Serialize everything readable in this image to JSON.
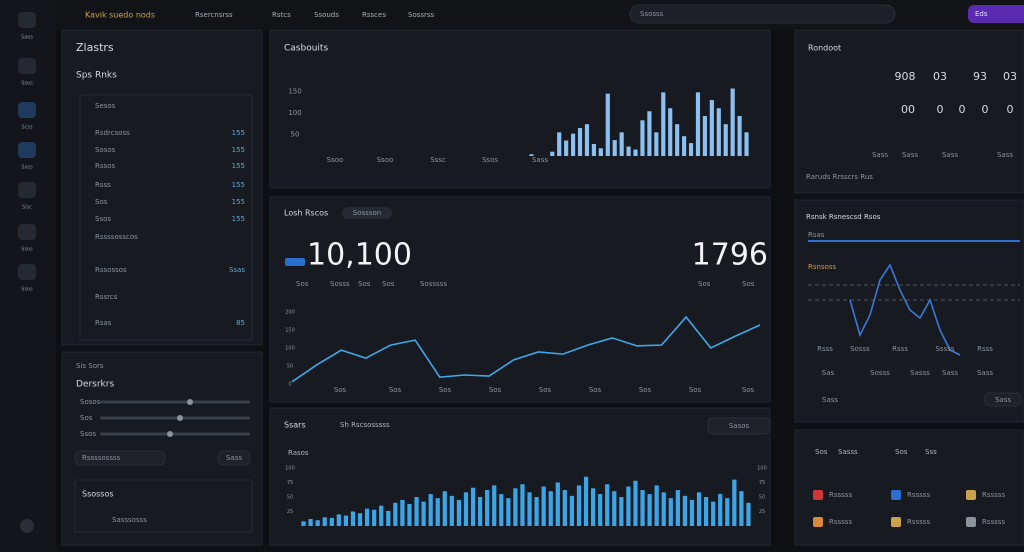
{
  "topbar": {
    "brand": "Kavik suedo nods",
    "menu": [
      "Rsercnsrss",
      "Rstcs",
      "Ssouds",
      "Rssces",
      "Sossrss"
    ],
    "search": "Ssosss",
    "button": "Eds"
  },
  "sidebar": [
    "Saos",
    "Ssos",
    "Scss",
    "Sass",
    "Sisc",
    "Ssos",
    "Ssos"
  ],
  "list_panel": {
    "title": "Zlastrs",
    "subtitle": "Sps Rnks",
    "header": "Sesos",
    "rows": [
      {
        "label": "Rsdrcsoss",
        "value": "155"
      },
      {
        "label": "Sosos",
        "value": "155"
      },
      {
        "label": "Rssos",
        "value": "155"
      },
      {
        "label": "Rsss",
        "value": "155"
      },
      {
        "label": "Sos",
        "value": "155"
      },
      {
        "label": "Ssos",
        "value": "155"
      },
      {
        "label": "Rssssosscos"
      },
      {
        "label": "Rssossos",
        "value": "Ssas"
      },
      {
        "label": "Rssrcs"
      },
      {
        "label": "Rsas",
        "value": "85"
      }
    ]
  },
  "sliders_panel": {
    "kicker": "Sis Sors",
    "title": "Dersrkrs",
    "sliders": [
      "Sosos",
      "Sos",
      "Ssos"
    ],
    "select": "Rssssossss",
    "button": "Sass",
    "footer": "Ssossos",
    "footer_row": "Sasssosss"
  },
  "bar_chart": {
    "title": "Casbouits",
    "ylim": [
      0,
      200
    ],
    "yticks": [
      150,
      100,
      50
    ],
    "labels": [
      "Ssoo",
      "Ssoo",
      "Sssc",
      "Ssos",
      "Sass"
    ],
    "values": [
      4,
      0,
      0,
      10,
      55,
      36,
      52,
      65,
      74,
      28,
      18,
      145,
      37,
      55,
      22,
      15,
      83,
      104,
      55,
      148,
      111,
      74,
      46,
      30,
      148,
      93,
      130,
      111,
      74,
      157,
      93,
      55
    ]
  },
  "kpi_panel": {
    "title": "Losh Rscos",
    "tag": "Sossson",
    "value_a": "10,100",
    "value_b": "1796",
    "legend": [
      "Sos",
      "Sosss",
      "Sos",
      "Sos",
      "Sosssss"
    ],
    "legend_right": [
      "Sos",
      "Sos"
    ],
    "chart": {
      "ylim": [
        0,
        200
      ],
      "yticks": [
        200,
        150,
        100,
        50,
        0
      ],
      "labels": [
        "Sos",
        "Sos",
        "Sos",
        "Sos",
        "Sos",
        "Sos",
        "Sos",
        "Sos",
        "Sos"
      ],
      "values": [
        6,
        53,
        94,
        72,
        108,
        122,
        19,
        25,
        22,
        67,
        89,
        83,
        108,
        128,
        106,
        108,
        186,
        100,
        133,
        164
      ]
    }
  },
  "volume_chart": {
    "title": "Ssars",
    "subtitle": "Sh Rscsosssss",
    "button": "Sasos",
    "legend": "Rasos",
    "ylim": [
      0,
      100
    ],
    "yticks": [
      100,
      75,
      50,
      25
    ],
    "values": [
      8,
      12,
      10,
      15,
      14,
      20,
      18,
      25,
      22,
      30,
      28,
      35,
      26,
      40,
      45,
      38,
      50,
      42,
      55,
      48,
      60,
      52,
      45,
      58,
      66,
      50,
      62,
      70,
      55,
      48,
      65,
      72,
      58,
      50,
      68,
      60,
      75,
      62,
      52,
      70,
      85,
      65,
      55,
      72,
      60,
      50,
      68,
      78,
      62,
      55,
      70,
      58,
      48,
      62,
      52,
      45,
      58,
      50,
      42,
      55,
      48,
      80,
      60,
      40
    ]
  },
  "right_top": {
    "title": "Rondoot",
    "row1": [
      "908",
      "03",
      "93",
      "03"
    ],
    "row2": [
      "00",
      "0",
      "0",
      "0",
      "0"
    ],
    "row3": [
      "Sass",
      "Sass",
      "Sass",
      "Sass"
    ],
    "footer": "Raruds Rrsscrs Rus"
  },
  "right_chart": {
    "title": "Rsnsk Rsnescsd Rsos",
    "legend": "Rsas",
    "label": "Rsnsoss",
    "ylim": [
      0,
      100
    ],
    "values": [
      60,
      25,
      45,
      80,
      95,
      70,
      50,
      42,
      60,
      30,
      10,
      5
    ],
    "labels": [
      "Rsss",
      "Sosss",
      "Rsss",
      "Sssss",
      "Rsss"
    ],
    "labels2": [
      "Sas",
      "Sosss",
      "Sasss",
      "Sass",
      "Sass"
    ],
    "footer": "Sass",
    "button": "Sass"
  },
  "right_list": {
    "header": [
      "Sos",
      "Sasss",
      "Sos",
      "Sss"
    ],
    "items": [
      "Rsssss",
      "Rsssss",
      "Rsssss",
      "Rsssss",
      "Rsssss",
      "Rsssss"
    ]
  }
}
